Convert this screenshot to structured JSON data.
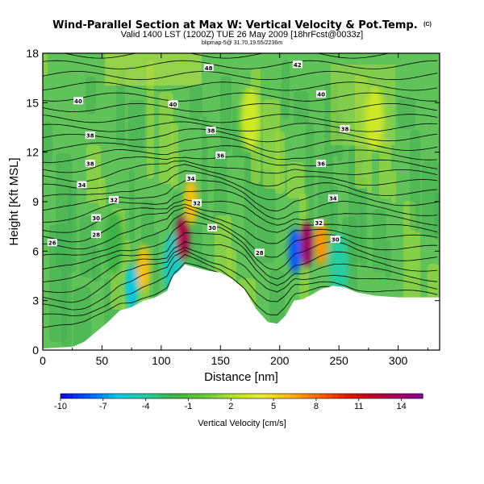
{
  "chart_data": {
    "type": "heatmap",
    "title": "Wind-Parallel Section at Max W: Vertical Velocity & Pot.Temp.",
    "title_mark": "(C)",
    "subtitle": "Valid 1400 LST (1200Z) TUE 26 May 2009 [18hrFcst@0033z]",
    "subsubtitle": "blipmap-5@ 31.70,19.55/2236m",
    "xlabel": "Distance [nm]",
    "ylabel": "Height [Kft MSL]",
    "xlim": [
      0,
      335
    ],
    "ylim": [
      0,
      18
    ],
    "xticks": [
      0,
      50,
      100,
      150,
      200,
      250,
      300
    ],
    "yticks": [
      0,
      3,
      6,
      9,
      12,
      15,
      18
    ],
    "colorbar": {
      "label": "Vertical Velocity [cm/s]",
      "ticks": [
        -10,
        -7,
        -4,
        -1,
        2,
        5,
        8,
        11,
        14
      ],
      "range": [
        -10,
        15.5
      ]
    },
    "terrain": {
      "x": [
        0,
        25,
        35,
        45,
        55,
        65,
        75,
        85,
        95,
        105,
        110,
        115,
        120,
        130,
        140,
        150,
        160,
        170,
        180,
        190,
        198,
        205,
        212,
        220,
        228,
        235,
        245,
        255,
        265,
        280,
        300,
        320,
        335
      ],
      "height": [
        0.1,
        0.2,
        0.5,
        1.1,
        1.7,
        2.4,
        2.6,
        3.0,
        3.2,
        3.6,
        4.5,
        4.8,
        5.2,
        5.0,
        4.8,
        4.7,
        4.3,
        3.7,
        2.5,
        1.7,
        1.6,
        2.1,
        3.0,
        3.1,
        3.4,
        3.7,
        3.9,
        3.8,
        3.5,
        3.3,
        3.2,
        3.2,
        3.2
      ]
    },
    "vertical_velocity_features": [
      {
        "x": 75,
        "z": 3.8,
        "w": -6
      },
      {
        "x": 85,
        "z": 5.0,
        "w": 6
      },
      {
        "x": 110,
        "z": 5.2,
        "w": -5
      },
      {
        "x": 118,
        "z": 6.8,
        "w": 13
      },
      {
        "x": 125,
        "z": 9.0,
        "w": 6
      },
      {
        "x": 213,
        "z": 6.0,
        "w": -8
      },
      {
        "x": 223,
        "z": 6.4,
        "w": 14
      },
      {
        "x": 235,
        "z": 6.5,
        "w": 7
      },
      {
        "x": 250,
        "z": 5.2,
        "w": -4
      },
      {
        "x": 60,
        "z": 6.5,
        "w": -2
      },
      {
        "x": 175,
        "z": 14.0,
        "w": 3
      },
      {
        "x": 280,
        "z": 14.0,
        "w": 3
      }
    ],
    "potential_temperature_labels": [
      {
        "value": "48",
        "x": 140,
        "z": 17.1
      },
      {
        "value": "42",
        "x": 215,
        "z": 17.3
      },
      {
        "value": "40",
        "x": 30,
        "z": 15.1
      },
      {
        "value": "40",
        "x": 110,
        "z": 14.9
      },
      {
        "value": "40",
        "x": 235,
        "z": 15.5
      },
      {
        "value": "38",
        "x": 40,
        "z": 13.0
      },
      {
        "value": "38",
        "x": 142,
        "z": 13.3
      },
      {
        "value": "38",
        "x": 255,
        "z": 13.4
      },
      {
        "value": "36",
        "x": 150,
        "z": 11.8
      },
      {
        "value": "36",
        "x": 235,
        "z": 11.3
      },
      {
        "value": "38",
        "x": 40,
        "z": 11.3
      },
      {
        "value": "34",
        "x": 33,
        "z": 10.0
      },
      {
        "value": "34",
        "x": 125,
        "z": 10.4
      },
      {
        "value": "34",
        "x": 245,
        "z": 9.2
      },
      {
        "value": "32",
        "x": 60,
        "z": 9.1
      },
      {
        "value": "32",
        "x": 130,
        "z": 8.9
      },
      {
        "value": "32",
        "x": 233,
        "z": 7.7
      },
      {
        "value": "30",
        "x": 45,
        "z": 8.0
      },
      {
        "value": "30",
        "x": 143,
        "z": 7.4
      },
      {
        "value": "30",
        "x": 247,
        "z": 6.7
      },
      {
        "value": "28",
        "x": 45,
        "z": 7.0
      },
      {
        "value": "28",
        "x": 183,
        "z": 5.9
      },
      {
        "value": "26",
        "x": 8,
        "z": 6.5
      }
    ]
  }
}
